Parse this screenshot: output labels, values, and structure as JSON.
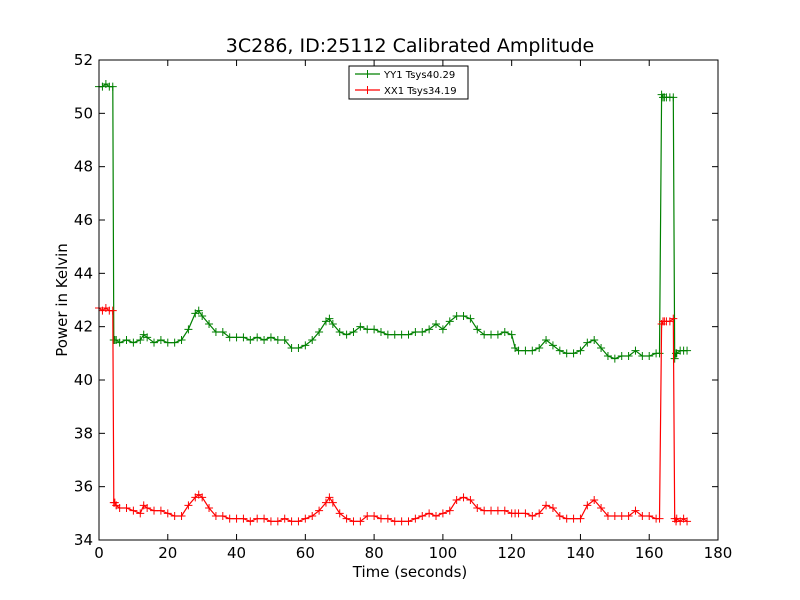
{
  "chart_data": {
    "type": "line",
    "title": "3C286, ID:25112 Calibrated Amplitude",
    "xlabel": "Time (seconds)",
    "ylabel": "Power in Kelvin",
    "xlim": [
      0,
      180
    ],
    "ylim": [
      34,
      52
    ],
    "xticks": [
      0,
      20,
      40,
      60,
      80,
      100,
      120,
      140,
      160,
      180
    ],
    "yticks": [
      34,
      36,
      38,
      40,
      42,
      44,
      46,
      48,
      50,
      52
    ],
    "grid": false,
    "legend_position": "top-center",
    "marker": "+",
    "series": [
      {
        "name": "YY1 Tsys40.29",
        "color": "#008000",
        "x": [
          0,
          1,
          2,
          3,
          4,
          4.3,
          4.6,
          5,
          6,
          8,
          10,
          12,
          13,
          14,
          16,
          18,
          20,
          22,
          24,
          26,
          28,
          29,
          30,
          32,
          34,
          36,
          38,
          40,
          42,
          44,
          46,
          48,
          50,
          52,
          54,
          56,
          58,
          60,
          62,
          64,
          66,
          67,
          68,
          70,
          72,
          74,
          76,
          78,
          80,
          82,
          84,
          86,
          88,
          90,
          92,
          94,
          96,
          98,
          100,
          102,
          104,
          106,
          108,
          110,
          112,
          114,
          116,
          118,
          120,
          121,
          122,
          124,
          126,
          128,
          130,
          132,
          134,
          136,
          138,
          140,
          142,
          144,
          146,
          148,
          150,
          152,
          154,
          156,
          158,
          160,
          162,
          163,
          163.6,
          164,
          164.4,
          165,
          166,
          167,
          167.4,
          167.8,
          168,
          169,
          170,
          171
        ],
        "values": [
          51.0,
          51.0,
          51.1,
          51.0,
          51.0,
          41.5,
          41.5,
          41.5,
          41.4,
          41.5,
          41.4,
          41.5,
          41.7,
          41.6,
          41.4,
          41.5,
          41.4,
          41.4,
          41.5,
          41.9,
          42.5,
          42.6,
          42.4,
          42.1,
          41.8,
          41.8,
          41.6,
          41.6,
          41.6,
          41.5,
          41.6,
          41.5,
          41.6,
          41.5,
          41.5,
          41.2,
          41.2,
          41.3,
          41.5,
          41.8,
          42.2,
          42.3,
          42.1,
          41.8,
          41.7,
          41.8,
          42.0,
          41.9,
          41.9,
          41.8,
          41.7,
          41.7,
          41.7,
          41.7,
          41.8,
          41.8,
          41.9,
          42.1,
          41.9,
          42.2,
          42.4,
          42.4,
          42.3,
          41.9,
          41.7,
          41.7,
          41.7,
          41.8,
          41.7,
          41.2,
          41.1,
          41.1,
          41.1,
          41.2,
          41.5,
          41.3,
          41.1,
          41.0,
          41.0,
          41.1,
          41.4,
          41.5,
          41.2,
          40.9,
          40.8,
          40.9,
          40.9,
          41.1,
          40.9,
          40.9,
          41.0,
          41.0,
          50.7,
          50.6,
          50.6,
          50.6,
          50.6,
          50.6,
          40.8,
          41.0,
          41.0,
          41.1,
          41.1,
          41.1
        ]
      },
      {
        "name": "XX1 Tsys34.19",
        "color": "#ff0000",
        "x": [
          0,
          1,
          2,
          3,
          4,
          4.3,
          4.6,
          5,
          6,
          8,
          10,
          12,
          13,
          14,
          16,
          18,
          20,
          22,
          24,
          26,
          28,
          29,
          30,
          32,
          34,
          36,
          38,
          40,
          42,
          44,
          46,
          48,
          50,
          52,
          54,
          56,
          58,
          60,
          62,
          64,
          66,
          67,
          68,
          70,
          72,
          74,
          76,
          78,
          80,
          82,
          84,
          86,
          88,
          90,
          92,
          94,
          96,
          98,
          100,
          102,
          104,
          106,
          108,
          110,
          112,
          114,
          116,
          118,
          120,
          121,
          122,
          124,
          126,
          128,
          130,
          132,
          134,
          136,
          138,
          140,
          142,
          144,
          146,
          148,
          150,
          152,
          154,
          156,
          158,
          160,
          162,
          163,
          163.6,
          164,
          164.4,
          165,
          166,
          167,
          167.4,
          167.8,
          168,
          169,
          170,
          171
        ],
        "values": [
          42.7,
          42.6,
          42.7,
          42.6,
          42.6,
          35.4,
          35.4,
          35.3,
          35.2,
          35.2,
          35.1,
          35.0,
          35.3,
          35.2,
          35.1,
          35.1,
          35.0,
          34.9,
          34.9,
          35.3,
          35.6,
          35.7,
          35.6,
          35.2,
          34.9,
          34.9,
          34.8,
          34.8,
          34.8,
          34.7,
          34.8,
          34.8,
          34.7,
          34.7,
          34.8,
          34.7,
          34.7,
          34.8,
          34.9,
          35.1,
          35.4,
          35.6,
          35.4,
          35.0,
          34.8,
          34.7,
          34.7,
          34.9,
          34.9,
          34.8,
          34.8,
          34.7,
          34.7,
          34.7,
          34.8,
          34.9,
          35.0,
          34.9,
          35.0,
          35.1,
          35.5,
          35.6,
          35.5,
          35.2,
          35.1,
          35.1,
          35.1,
          35.1,
          35.0,
          35.0,
          35.0,
          35.0,
          34.9,
          35.0,
          35.3,
          35.2,
          34.9,
          34.8,
          34.8,
          34.8,
          35.3,
          35.5,
          35.2,
          34.9,
          34.9,
          34.9,
          34.9,
          35.1,
          34.9,
          34.9,
          34.8,
          34.8,
          42.1,
          42.2,
          42.2,
          42.2,
          42.2,
          42.3,
          34.8,
          34.7,
          34.8,
          34.7,
          34.8,
          34.7
        ]
      }
    ]
  }
}
